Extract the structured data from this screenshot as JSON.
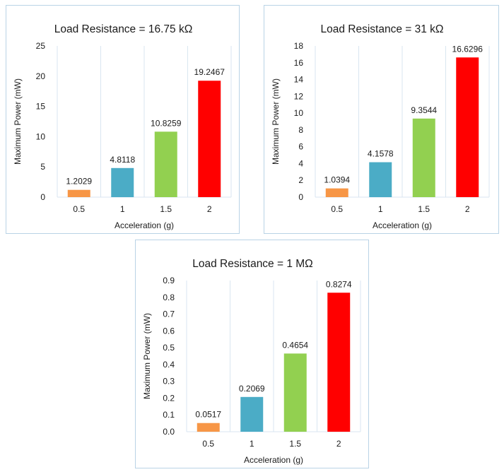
{
  "chart_data": [
    {
      "type": "bar",
      "title": "Load Resistance = 16.75 kΩ",
      "xlabel": "Acceleration (g)",
      "ylabel": "Maximum Power (mW)",
      "categories": [
        "0.5",
        "1",
        "1.5",
        "2"
      ],
      "values": [
        1.2029,
        4.8118,
        10.8259,
        19.2467
      ],
      "value_labels": [
        "1.2029",
        "4.8118",
        "10.8259",
        "19.2467"
      ],
      "colors": [
        "#f79646",
        "#4bacc6",
        "#92d050",
        "#ff0000"
      ],
      "ylim": [
        0,
        25
      ],
      "yticks": [
        "0",
        "5",
        "10",
        "15",
        "20",
        "25"
      ],
      "grid": "vertical"
    },
    {
      "type": "bar",
      "title": "Load Resistance = 31 kΩ",
      "xlabel": "Acceleration (g)",
      "ylabel": "Maximum Power (mW)",
      "categories": [
        "0.5",
        "1",
        "1.5",
        "2"
      ],
      "values": [
        1.0394,
        4.1578,
        9.3544,
        16.6296
      ],
      "value_labels": [
        "1.0394",
        "4.1578",
        "9.3544",
        "16.6296"
      ],
      "colors": [
        "#f79646",
        "#4bacc6",
        "#92d050",
        "#ff0000"
      ],
      "ylim": [
        0,
        18
      ],
      "yticks": [
        "0",
        "2",
        "4",
        "6",
        "8",
        "10",
        "12",
        "14",
        "16",
        "18"
      ],
      "grid": "vertical"
    },
    {
      "type": "bar",
      "title": "Load Resistance = 1 MΩ",
      "xlabel": "Acceleration (g)",
      "ylabel": "Maximum Power (mW)",
      "categories": [
        "0.5",
        "1",
        "1.5",
        "2"
      ],
      "values": [
        0.0517,
        0.2069,
        0.4654,
        0.8274
      ],
      "value_labels": [
        "0.0517",
        "0.2069",
        "0.4654",
        "0.8274"
      ],
      "colors": [
        "#f79646",
        "#4bacc6",
        "#92d050",
        "#ff0000"
      ],
      "ylim": [
        0,
        0.9
      ],
      "yticks": [
        "0.0",
        "0.1",
        "0.2",
        "0.3",
        "0.4",
        "0.5",
        "0.6",
        "0.7",
        "0.8",
        "0.9"
      ],
      "grid": "vertical"
    }
  ]
}
